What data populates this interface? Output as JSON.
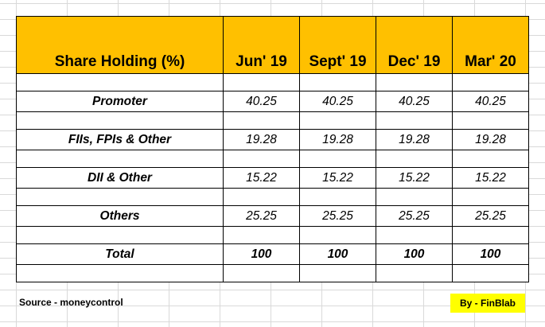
{
  "corner_mark": "`",
  "table": {
    "header": [
      "Share Holding (%)",
      "Jun' 19",
      "Sept' 19",
      "Dec' 19",
      "Mar' 20"
    ],
    "rows": [
      {
        "label": "Promoter",
        "values": [
          "40.25",
          "40.25",
          "40.25",
          "40.25"
        ]
      },
      {
        "label": "FIIs, FPIs & Other",
        "values": [
          "19.28",
          "19.28",
          "19.28",
          "19.28"
        ]
      },
      {
        "label": "DII & Other",
        "values": [
          "15.22",
          "15.22",
          "15.22",
          "15.22"
        ]
      },
      {
        "label": "Others",
        "values": [
          "25.25",
          "25.25",
          "25.25",
          "25.25"
        ]
      },
      {
        "label": "Total",
        "values": [
          "100",
          "100",
          "100",
          "100"
        ]
      }
    ]
  },
  "footer": {
    "source": "Source - moneycontrol",
    "byline": "By - FinBlab"
  },
  "colors": {
    "header_fill": "#ffc000",
    "byline_fill": "#ffff00"
  }
}
